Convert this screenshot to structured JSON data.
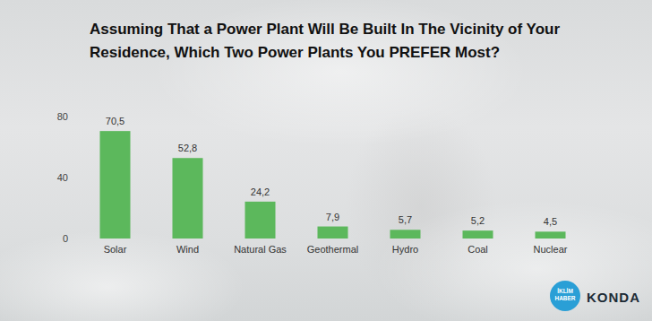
{
  "chart_data": {
    "type": "bar",
    "title": "Assuming That a Power Plant Will Be Built In The Vicinity of Your Residence, Which Two Power Plants You PREFER Most?",
    "categories": [
      "Solar",
      "Wind",
      "Natural Gas",
      "Geothermal",
      "Hydro",
      "Coal",
      "Nuclear"
    ],
    "values": [
      70.5,
      52.8,
      24.2,
      7.9,
      5.7,
      5.2,
      4.5
    ],
    "value_labels": [
      "70,5",
      "52,8",
      "24,2",
      "7,9",
      "5,7",
      "5,2",
      "4,5"
    ],
    "color": "#5cb85c",
    "ylim": [
      0,
      80
    ],
    "yticks": [
      0,
      40,
      80
    ],
    "grid": false,
    "data_labels": true,
    "annotations": [
      "İKLİM HABER",
      "KONDA"
    ]
  }
}
